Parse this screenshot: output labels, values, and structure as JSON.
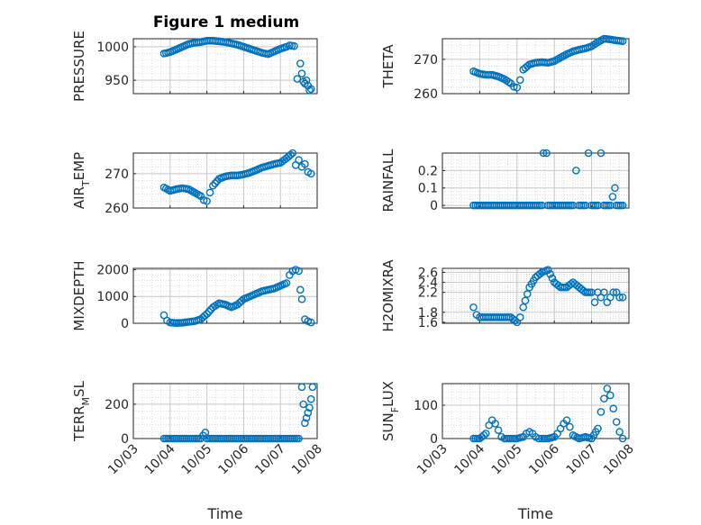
{
  "figure": {
    "title": "Figure 1 medium",
    "x_tick_labels": [
      "10/03",
      "10/04",
      "10/05",
      "10/06",
      "10/07",
      "10/08"
    ],
    "xlabel": "Time",
    "marker_color": "#0072BD",
    "marker": "open-circle",
    "grid": true,
    "minor_grid": true
  },
  "chart_data": [
    {
      "type": "scatter",
      "title": "Figure 1 medium",
      "ylabel": "PRESSURE",
      "y_ticks": [
        950,
        1000
      ],
      "ylim": [
        930,
        1012
      ],
      "x_tick_labels": [],
      "series": [
        {
          "x": [
            "10/03 20:00",
            "10/04 00:00",
            "10/04 04:00",
            "10/04 08:00",
            "10/04 12:00",
            "10/04 16:00",
            "10/04 20:00",
            "10/05 00:00",
            "10/05 04:00",
            "10/05 08:00",
            "10/05 12:00",
            "10/05 16:00",
            "10/05 20:00",
            "10/06 00:00",
            "10/06 04:00",
            "10/06 08:00",
            "10/06 12:00",
            "10/06 16:00",
            "10/06 20:00",
            "10/07 00:00",
            "10/07 04:00",
            "10/07 06:00",
            "10/07 09:00",
            "10/07 11:00",
            "10/07 13:00",
            "10/07 14:00",
            "10/07 15:00",
            "10/07 16:00",
            "10/07 17:00",
            "10/07 18:00",
            "10/07 19:00",
            "10/07 20:00"
          ],
          "y": [
            990,
            992,
            996,
            1000,
            1004,
            1006,
            1007,
            1009,
            1009,
            1008,
            1007,
            1005,
            1003,
            1000,
            997,
            994,
            991,
            989,
            993,
            997,
            1000,
            1002,
            1001,
            952,
            975,
            960,
            948,
            945,
            950,
            942,
            935,
            937
          ]
        }
      ]
    },
    {
      "type": "scatter",
      "ylabel": "THETA",
      "y_ticks": [
        260,
        270
      ],
      "ylim": [
        260,
        276
      ],
      "x_tick_labels": [],
      "series": [
        {
          "x": [
            "10/03 20:00",
            "10/04 00:00",
            "10/04 04:00",
            "10/04 08:00",
            "10/04 12:00",
            "10/04 16:00",
            "10/04 20:00",
            "10/04 22:00",
            "10/05 00:00",
            "10/05 02:00",
            "10/05 04:00",
            "10/05 08:00",
            "10/05 12:00",
            "10/05 16:00",
            "10/05 20:00",
            "10/06 00:00",
            "10/06 04:00",
            "10/06 08:00",
            "10/06 12:00",
            "10/06 16:00",
            "10/06 20:00",
            "10/07 00:00",
            "10/07 04:00",
            "10/07 08:00",
            "10/07 12:00",
            "10/07 16:00",
            "10/07 20:00"
          ],
          "y": [
            266.5,
            265.8,
            265.5,
            265.5,
            265,
            264.2,
            263,
            262,
            261.8,
            264,
            267,
            268.5,
            269,
            269.2,
            269,
            269.5,
            270.5,
            271.5,
            272.3,
            272.8,
            273.2,
            273.8,
            275,
            276,
            275.8,
            275.5,
            275.3
          ]
        }
      ]
    },
    {
      "type": "scatter",
      "ylabel": "AIR_TEMP",
      "y_ticks": [
        260,
        270
      ],
      "ylim": [
        260,
        276
      ],
      "x_tick_labels": [],
      "series": [
        {
          "x": [
            "10/03 20:00",
            "10/04 00:00",
            "10/04 04:00",
            "10/04 08:00",
            "10/04 12:00",
            "10/04 16:00",
            "10/04 20:00",
            "10/04 22:00",
            "10/05 00:00",
            "10/05 02:00",
            "10/05 04:00",
            "10/05 08:00",
            "10/05 12:00",
            "10/05 16:00",
            "10/05 20:00",
            "10/06 00:00",
            "10/06 04:00",
            "10/06 08:00",
            "10/06 12:00",
            "10/06 16:00",
            "10/06 20:00",
            "10/07 00:00",
            "10/07 04:00",
            "10/07 08:00",
            "10/07 10:00",
            "10/07 12:00",
            "10/07 14:00",
            "10/07 16:00",
            "10/07 18:00",
            "10/07 20:00"
          ],
          "y": [
            266,
            265,
            265.5,
            265.8,
            265.5,
            264.5,
            263.5,
            262.3,
            262,
            264.5,
            266.5,
            268.5,
            269.2,
            269.5,
            269.5,
            269.8,
            270.3,
            271,
            271.8,
            272.3,
            272.8,
            273.2,
            274.5,
            276,
            272.5,
            274,
            272,
            272.8,
            270.5,
            270
          ]
        }
      ]
    },
    {
      "type": "scatter",
      "ylabel": "RAINFALL",
      "y_ticks": [
        0,
        0.1,
        0.2
      ],
      "y_tick_labels": [
        "0",
        "0.1",
        "0.2"
      ],
      "ylim": [
        -0.015,
        0.3
      ],
      "x_tick_labels": [],
      "series": [
        {
          "x": [
            "10/03 20:00",
            "10/04 00:00",
            "10/04 04:00",
            "10/04 08:00",
            "10/04 12:00",
            "10/04 16:00",
            "10/04 20:00",
            "10/05 00:00",
            "10/05 04:00",
            "10/05 08:00",
            "10/05 12:00",
            "10/05 16:00",
            "10/05 20:00",
            "10/06 00:00",
            "10/06 04:00",
            "10/06 08:00",
            "10/06 12:00",
            "10/06 16:00",
            "10/06 20:00",
            "10/07 00:00",
            "10/07 04:00",
            "10/07 08:00",
            "10/07 12:00",
            "10/07 16:00",
            "10/07 20:00",
            "10/05 17:00",
            "10/05 19:00",
            "10/06 14:00",
            "10/06 22:00",
            "10/07 06:00",
            "10/07 15:00"
          ],
          "y": [
            0,
            0,
            0,
            0,
            0,
            0,
            0,
            0,
            0,
            0,
            0,
            0,
            0,
            0,
            0,
            0,
            0,
            0,
            0,
            0,
            0,
            0,
            0,
            0,
            0,
            0.3,
            0.3,
            0.2,
            0.3,
            0.3,
            0.1
          ]
        }
      ]
    },
    {
      "type": "scatter",
      "ylabel": "MIXDEPTH",
      "y_ticks": [
        0,
        1000,
        2000
      ],
      "ylim": [
        0,
        2050
      ],
      "x_tick_labels": [],
      "series": [
        {
          "x": [
            "10/03 20:00",
            "10/03 22:00",
            "10/04 00:00",
            "10/04 04:00",
            "10/04 08:00",
            "10/04 12:00",
            "10/04 16:00",
            "10/04 20:00",
            "10/05 00:00",
            "10/05 04:00",
            "10/05 08:00",
            "10/05 12:00",
            "10/05 16:00",
            "10/05 20:00",
            "10/06 00:00",
            "10/06 04:00",
            "10/06 08:00",
            "10/06 12:00",
            "10/06 16:00",
            "10/06 20:00",
            "10/07 00:00",
            "10/07 04:00",
            "10/07 06:00",
            "10/07 08:00",
            "10/07 10:00",
            "10/07 12:00",
            "10/07 13:00",
            "10/07 14:00",
            "10/07 16:00",
            "10/07 18:00",
            "10/07 20:00"
          ],
          "y": [
            300,
            100,
            30,
            10,
            20,
            50,
            80,
            150,
            350,
            600,
            750,
            700,
            600,
            700,
            900,
            1000,
            1100,
            1200,
            1250,
            1300,
            1400,
            1500,
            1800,
            1950,
            2000,
            1950,
            1250,
            900,
            150,
            80,
            30
          ]
        }
      ]
    },
    {
      "type": "scatter",
      "ylabel": "H2OMIXRA",
      "y_ticks": [
        1.6,
        1.8,
        2.2,
        2.4,
        2.6
      ],
      "y_tick_labels": [
        "1.6",
        "1.8",
        "2.2",
        "2.4",
        "2.6"
      ],
      "ylim": [
        1.58,
        2.68
      ],
      "x_tick_labels": [],
      "series": [
        {
          "x": [
            "10/03 20:00",
            "10/03 22:00",
            "10/04 00:00",
            "10/04 04:00",
            "10/04 08:00",
            "10/04 12:00",
            "10/04 16:00",
            "10/04 20:00",
            "10/05 00:00",
            "10/05 02:00",
            "10/05 04:00",
            "10/05 08:00",
            "10/05 12:00",
            "10/05 16:00",
            "10/05 20:00",
            "10/06 00:00",
            "10/06 04:00",
            "10/06 08:00",
            "10/06 12:00",
            "10/06 16:00",
            "10/06 20:00",
            "10/07 00:00",
            "10/07 02:00",
            "10/07 04:00",
            "10/07 06:00",
            "10/07 08:00",
            "10/07 10:00",
            "10/07 12:00",
            "10/07 14:00",
            "10/07 16:00",
            "10/07 18:00",
            "10/07 20:00"
          ],
          "y": [
            1.9,
            1.75,
            1.7,
            1.7,
            1.7,
            1.7,
            1.7,
            1.7,
            1.6,
            1.7,
            1.9,
            2.3,
            2.5,
            2.6,
            2.65,
            2.4,
            2.3,
            2.3,
            2.4,
            2.3,
            2.2,
            2.2,
            2.0,
            2.2,
            2.1,
            2.2,
            2.0,
            2.1,
            2.2,
            2.2,
            2.1,
            2.1
          ]
        }
      ]
    },
    {
      "type": "scatter",
      "ylabel": "TERR_MSL",
      "y_ticks": [
        0,
        200
      ],
      "ylim": [
        0,
        320
      ],
      "x_tick_labels": [
        "10/03",
        "10/04",
        "10/05",
        "10/06",
        "10/07",
        "10/08"
      ],
      "xlabel": "Time",
      "series": [
        {
          "x": [
            "10/03 20:00",
            "10/04 00:00",
            "10/04 04:00",
            "10/04 08:00",
            "10/04 12:00",
            "10/04 16:00",
            "10/04 20:00",
            "10/05 00:00",
            "10/05 04:00",
            "10/05 08:00",
            "10/05 12:00",
            "10/05 16:00",
            "10/05 20:00",
            "10/06 00:00",
            "10/06 04:00",
            "10/06 08:00",
            "10/06 12:00",
            "10/06 16:00",
            "10/06 20:00",
            "10/07 00:00",
            "10/07 04:00",
            "10/07 08:00",
            "10/07 12:00",
            "10/04 23:00",
            "10/07 14:00",
            "10/07 15:00",
            "10/07 16:00",
            "10/07 17:00",
            "10/07 18:00",
            "10/07 19:00",
            "10/07 20:00",
            "10/07 21:00"
          ],
          "y": [
            0,
            0,
            0,
            0,
            0,
            0,
            0,
            0,
            0,
            0,
            0,
            0,
            0,
            0,
            0,
            0,
            0,
            0,
            0,
            0,
            0,
            0,
            0,
            35,
            300,
            200,
            90,
            120,
            150,
            180,
            230,
            300
          ]
        }
      ]
    },
    {
      "type": "scatter",
      "ylabel": "SUN_FLUX",
      "y_ticks": [
        0,
        100
      ],
      "ylim": [
        0,
        165
      ],
      "x_tick_labels": [
        "10/03",
        "10/04",
        "10/05",
        "10/06",
        "10/07",
        "10/08"
      ],
      "xlabel": "Time",
      "series": [
        {
          "x": [
            "10/03 20:00",
            "10/04 00:00",
            "10/04 04:00",
            "10/04 06:00",
            "10/04 08:00",
            "10/04 10:00",
            "10/04 12:00",
            "10/04 14:00",
            "10/04 16:00",
            "10/04 20:00",
            "10/05 00:00",
            "10/05 04:00",
            "10/05 06:00",
            "10/05 08:00",
            "10/05 10:00",
            "10/05 12:00",
            "10/05 14:00",
            "10/05 16:00",
            "10/05 20:00",
            "10/06 00:00",
            "10/06 02:00",
            "10/06 04:00",
            "10/06 06:00",
            "10/06 08:00",
            "10/06 10:00",
            "10/06 12:00",
            "10/06 16:00",
            "10/06 20:00",
            "10/07 00:00",
            "10/07 04:00",
            "10/07 06:00",
            "10/07 08:00",
            "10/07 10:00",
            "10/07 12:00",
            "10/07 14:00",
            "10/07 16:00",
            "10/07 18:00",
            "10/07 20:00"
          ],
          "y": [
            0,
            0,
            15,
            40,
            55,
            45,
            25,
            5,
            0,
            0,
            0,
            5,
            15,
            20,
            15,
            5,
            0,
            0,
            0,
            5,
            15,
            30,
            45,
            55,
            35,
            10,
            0,
            5,
            0,
            30,
            80,
            120,
            150,
            130,
            90,
            50,
            20,
            0
          ]
        }
      ]
    }
  ]
}
